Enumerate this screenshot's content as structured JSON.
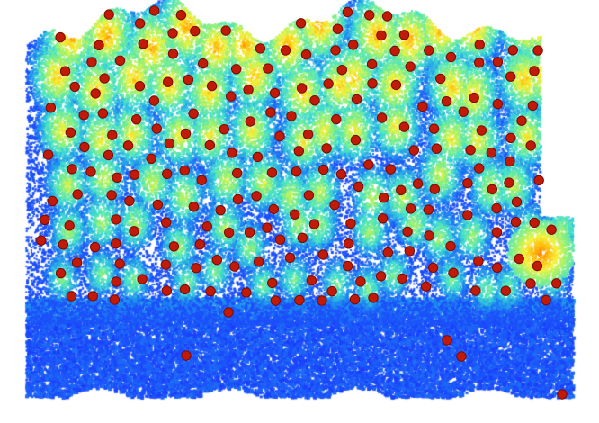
{
  "image": {
    "subject": "",
    "colormap": [
      "#1a2eff",
      "#1f8ef0",
      "#3fe0d0",
      "#8ef07a",
      "#f5f23a",
      "#ffb000",
      "#ff5a00",
      "#e02000"
    ],
    "background": "#ffffff",
    "marker_fill": "#c21a08",
    "marker_stroke": "#7a0a00",
    "marker_count": 220
  }
}
